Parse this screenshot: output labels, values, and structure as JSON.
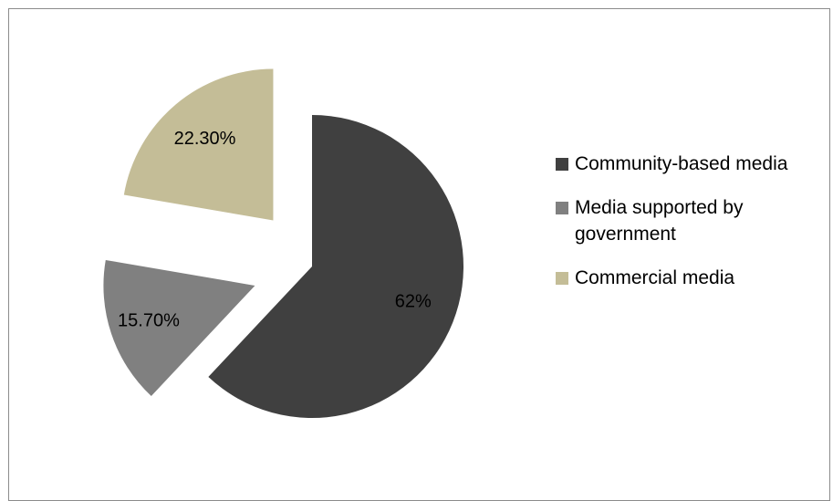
{
  "chart_data": {
    "type": "pie",
    "title": "",
    "slices": [
      {
        "label": "Community-based media",
        "value": 62,
        "display": "62%",
        "color": "#404040",
        "exploded": false
      },
      {
        "label": "Media supported by government",
        "value": 15.7,
        "display": "15.70%",
        "color": "#808080",
        "exploded": true
      },
      {
        "label": "Commercial media",
        "value": 22.3,
        "display": "22.30%",
        "color": "#c4bd97",
        "exploded": true
      }
    ],
    "legend_position": "right",
    "legend": [
      {
        "label": "Community-based media",
        "color": "#404040"
      },
      {
        "label": "Media supported by government",
        "color": "#808080"
      },
      {
        "label": "Commercial media",
        "color": "#c4bd97"
      }
    ]
  }
}
